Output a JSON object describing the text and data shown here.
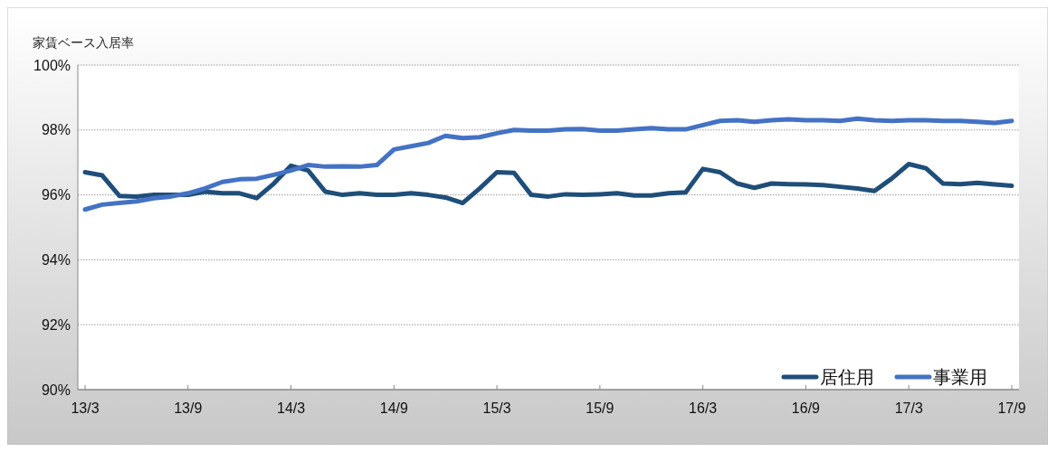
{
  "chart_data": {
    "type": "line",
    "ylabel": "家賃ベース入居率",
    "categories": [
      "13/3",
      null,
      null,
      null,
      null,
      null,
      "13/9",
      null,
      null,
      null,
      null,
      null,
      "14/3",
      null,
      null,
      null,
      null,
      null,
      "14/9",
      null,
      null,
      null,
      null,
      null,
      "15/3",
      null,
      null,
      null,
      null,
      null,
      "15/9",
      null,
      null,
      null,
      null,
      null,
      "16/3",
      null,
      null,
      null,
      null,
      null,
      "16/9",
      null,
      null,
      null,
      null,
      null,
      "17/3",
      null,
      null,
      null,
      null,
      null,
      "17/9"
    ],
    "series": [
      {
        "name": "居住用",
        "color": "#1f4e79",
        "values": [
          96.7,
          96.6,
          95.97,
          95.95,
          96.0,
          96.0,
          96.0,
          96.1,
          96.05,
          96.05,
          95.9,
          96.35,
          96.9,
          96.75,
          96.1,
          96.0,
          96.05,
          96.0,
          96.0,
          96.05,
          96.0,
          95.92,
          95.75,
          96.2,
          96.7,
          96.68,
          96.0,
          95.95,
          96.02,
          96.0,
          96.02,
          96.05,
          95.98,
          95.98,
          96.05,
          96.08,
          96.8,
          96.7,
          96.35,
          96.22,
          96.35,
          96.33,
          96.32,
          96.3,
          96.25,
          96.2,
          96.12,
          96.5,
          96.95,
          96.82,
          96.35,
          96.33,
          96.37,
          96.32,
          96.28
        ]
      },
      {
        "name": "事業用",
        "color": "#4472c4",
        "values": [
          95.55,
          95.7,
          95.75,
          95.8,
          95.9,
          95.95,
          96.05,
          96.2,
          96.4,
          96.48,
          96.5,
          96.62,
          96.75,
          96.92,
          96.87,
          96.88,
          96.87,
          96.92,
          97.4,
          97.5,
          97.6,
          97.82,
          97.75,
          97.78,
          97.9,
          98.0,
          97.98,
          97.98,
          98.02,
          98.03,
          97.98,
          97.98,
          98.02,
          98.06,
          98.02,
          98.02,
          98.15,
          98.28,
          98.3,
          98.25,
          98.3,
          98.33,
          98.3,
          98.3,
          98.28,
          98.35,
          98.3,
          98.28,
          98.3,
          98.3,
          98.28,
          98.28,
          98.25,
          98.22,
          98.28
        ]
      }
    ],
    "ylim": [
      90,
      100
    ],
    "yticks": [
      {
        "value": 90,
        "label": "90%"
      },
      {
        "value": 92,
        "label": "92%"
      },
      {
        "value": 94,
        "label": "94%"
      },
      {
        "value": 96,
        "label": "96%"
      },
      {
        "value": 98,
        "label": "98%"
      },
      {
        "value": 100,
        "label": "100%"
      }
    ],
    "grid": "y",
    "legend": "bottom right",
    "marker": "none",
    "line_style": "solid"
  }
}
